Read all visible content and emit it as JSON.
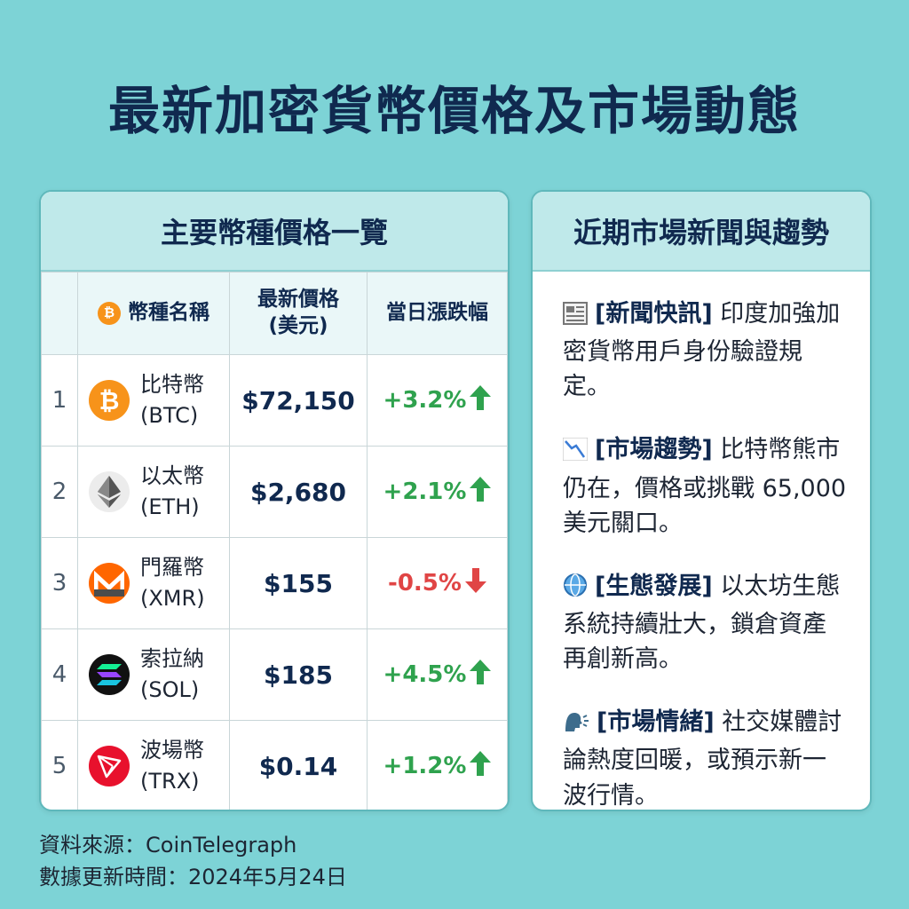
{
  "title": "最新加密貨幣價格及市場動態",
  "price_table": {
    "heading": "主要幣種價格一覽",
    "columns": {
      "name": "幣種名稱",
      "price_line1": "最新價格",
      "price_line2": "(美元)",
      "change": "當日漲跌幅"
    },
    "rows": [
      {
        "index": "1",
        "name": "比特幣",
        "symbol": "(BTC)",
        "price": "$72,150",
        "change": "+3.2%",
        "direction": "up",
        "icon": "bitcoin-icon",
        "icon_color": "#f7931a"
      },
      {
        "index": "2",
        "name": "以太幣",
        "symbol": "(ETH)",
        "price": "$2,680",
        "change": "+2.1%",
        "direction": "up",
        "icon": "ethereum-icon",
        "icon_color": "#ececec"
      },
      {
        "index": "3",
        "name": "門羅幣",
        "symbol": "(XMR)",
        "price": "$155",
        "change": "-0.5%",
        "direction": "down",
        "icon": "monero-icon",
        "icon_color": "#ff6600"
      },
      {
        "index": "4",
        "name": "索拉納",
        "symbol": "(SOL)",
        "price": "$185",
        "change": "+4.5%",
        "direction": "up",
        "icon": "solana-icon",
        "icon_color": "#111111"
      },
      {
        "index": "5",
        "name": "波場幣",
        "symbol": "(TRX)",
        "price": "$0.14",
        "change": "+1.2%",
        "direction": "up",
        "icon": "tron-icon",
        "icon_color": "#e8112d"
      }
    ]
  },
  "news_panel": {
    "heading": "近期市場新聞與趨勢",
    "items": [
      {
        "icon": "newspaper-icon",
        "tag": "[新聞快訊]",
        "text": "印度加強加密貨幣用戶身份驗證規定。"
      },
      {
        "icon": "chart-down-icon",
        "tag": "[市場趨勢]",
        "text": "比特幣熊市仍在，價格或挑戰 65,000 美元關口。"
      },
      {
        "icon": "globe-icon",
        "tag": "[生態發展]",
        "text": "以太坊生態系統持續壯大，鎖倉資產再創新高。"
      },
      {
        "icon": "speaking-head-icon",
        "tag": "[市場情緒]",
        "text": "社交媒體討論熱度回暖，或預示新一波行情。"
      }
    ]
  },
  "footer": {
    "source": "資料來源：CoinTelegraph",
    "updated": "數據更新時間：2024年5月24日"
  },
  "colors": {
    "background": "#7dd3d6",
    "up": "#2fa24e",
    "down": "#e04545"
  }
}
